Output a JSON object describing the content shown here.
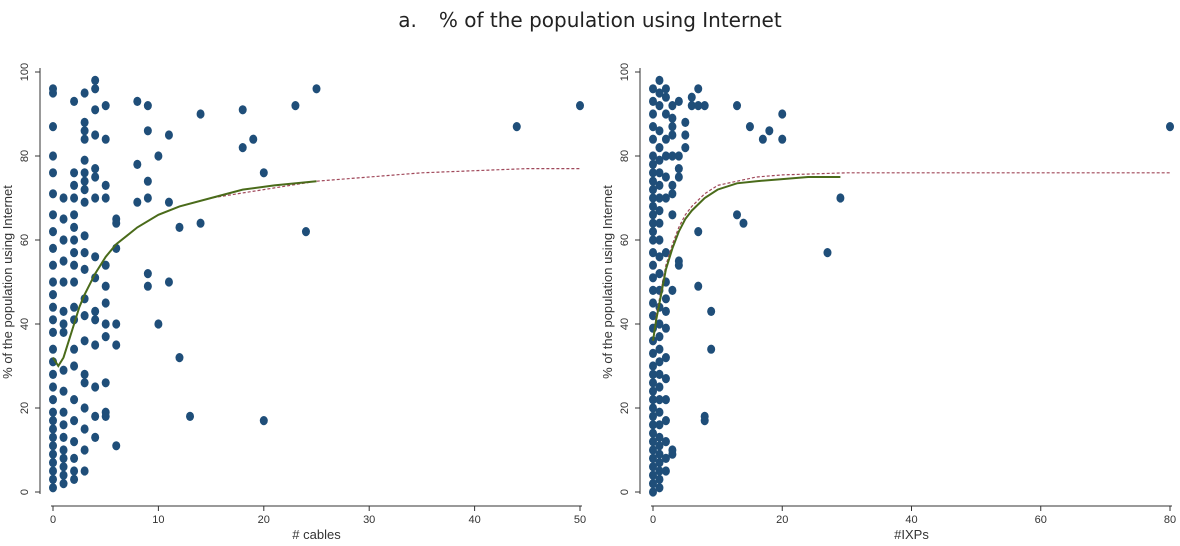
{
  "title": {
    "number": "a.",
    "text": "% of the population using Internet"
  },
  "chart_data": [
    {
      "type": "scatter",
      "xlabel": "# cables",
      "ylabel": "% of the population using Internet",
      "xlim": [
        0,
        50
      ],
      "ylim": [
        0,
        100
      ],
      "xticks": [
        0,
        10,
        20,
        30,
        40,
        50
      ],
      "yticks": [
        0,
        20,
        40,
        60,
        80,
        100
      ],
      "colors": {
        "points": "#1f4e79",
        "fit_solid": "#4a6b1a",
        "fit_dashed": "#a0485a"
      },
      "points": [
        [
          0,
          1
        ],
        [
          0,
          3
        ],
        [
          0,
          5
        ],
        [
          0,
          7
        ],
        [
          0,
          9
        ],
        [
          0,
          11
        ],
        [
          0,
          13
        ],
        [
          0,
          15
        ],
        [
          0,
          17
        ],
        [
          0,
          19
        ],
        [
          0,
          22
        ],
        [
          0,
          25
        ],
        [
          0,
          28
        ],
        [
          0,
          31
        ],
        [
          0,
          34
        ],
        [
          0,
          38
        ],
        [
          0,
          41
        ],
        [
          0,
          44
        ],
        [
          0,
          47
        ],
        [
          0,
          50
        ],
        [
          0,
          54
        ],
        [
          0,
          58
        ],
        [
          0,
          62
        ],
        [
          0,
          66
        ],
        [
          0,
          71
        ],
        [
          0,
          76
        ],
        [
          0,
          80
        ],
        [
          0,
          87
        ],
        [
          0,
          95
        ],
        [
          0,
          96
        ],
        [
          1,
          2
        ],
        [
          1,
          4
        ],
        [
          1,
          6
        ],
        [
          1,
          8
        ],
        [
          1,
          10
        ],
        [
          1,
          13
        ],
        [
          1,
          16
        ],
        [
          1,
          19
        ],
        [
          1,
          24
        ],
        [
          1,
          29
        ],
        [
          1,
          38
        ],
        [
          1,
          40
        ],
        [
          1,
          43
        ],
        [
          1,
          50
        ],
        [
          1,
          55
        ],
        [
          1,
          60
        ],
        [
          1,
          65
        ],
        [
          1,
          70
        ],
        [
          2,
          3
        ],
        [
          2,
          5
        ],
        [
          2,
          8
        ],
        [
          2,
          12
        ],
        [
          2,
          17
        ],
        [
          2,
          22
        ],
        [
          2,
          30
        ],
        [
          2,
          34
        ],
        [
          2,
          41
        ],
        [
          2,
          44
        ],
        [
          2,
          50
        ],
        [
          2,
          54
        ],
        [
          2,
          57
        ],
        [
          2,
          60
        ],
        [
          2,
          63
        ],
        [
          2,
          66
        ],
        [
          2,
          70
        ],
        [
          2,
          73
        ],
        [
          2,
          76
        ],
        [
          2,
          93
        ],
        [
          3,
          5
        ],
        [
          3,
          10
        ],
        [
          3,
          15
        ],
        [
          3,
          20
        ],
        [
          3,
          26
        ],
        [
          3,
          28
        ],
        [
          3,
          36
        ],
        [
          3,
          42
        ],
        [
          3,
          46
        ],
        [
          3,
          53
        ],
        [
          3,
          57
        ],
        [
          3,
          61
        ],
        [
          3,
          69
        ],
        [
          3,
          72
        ],
        [
          3,
          74
        ],
        [
          3,
          76
        ],
        [
          3,
          79
        ],
        [
          3,
          84
        ],
        [
          3,
          86
        ],
        [
          3,
          88
        ],
        [
          3,
          95
        ],
        [
          4,
          13
        ],
        [
          4,
          18
        ],
        [
          4,
          25
        ],
        [
          4,
          35
        ],
        [
          4,
          41
        ],
        [
          4,
          43
        ],
        [
          4,
          51
        ],
        [
          4,
          56
        ],
        [
          4,
          70
        ],
        [
          4,
          75
        ],
        [
          4,
          77
        ],
        [
          4,
          85
        ],
        [
          4,
          91
        ],
        [
          4,
          96
        ],
        [
          4,
          98
        ],
        [
          5,
          18
        ],
        [
          5,
          19
        ],
        [
          5,
          26
        ],
        [
          5,
          37
        ],
        [
          5,
          40
        ],
        [
          5,
          45
        ],
        [
          5,
          49
        ],
        [
          5,
          54
        ],
        [
          5,
          70
        ],
        [
          5,
          73
        ],
        [
          5,
          84
        ],
        [
          5,
          92
        ],
        [
          6,
          11
        ],
        [
          6,
          35
        ],
        [
          6,
          40
        ],
        [
          6,
          58
        ],
        [
          6,
          64
        ],
        [
          6,
          65
        ],
        [
          8,
          69
        ],
        [
          8,
          78
        ],
        [
          8,
          93
        ],
        [
          9,
          49
        ],
        [
          9,
          52
        ],
        [
          9,
          70
        ],
        [
          9,
          74
        ],
        [
          9,
          86
        ],
        [
          9,
          92
        ],
        [
          10,
          40
        ],
        [
          10,
          80
        ],
        [
          11,
          50
        ],
        [
          11,
          69
        ],
        [
          11,
          85
        ],
        [
          12,
          32
        ],
        [
          12,
          63
        ],
        [
          13,
          18
        ],
        [
          14,
          64
        ],
        [
          14,
          90
        ],
        [
          18,
          82
        ],
        [
          18,
          91
        ],
        [
          19,
          84
        ],
        [
          20,
          17
        ],
        [
          20,
          76
        ],
        [
          23,
          92
        ],
        [
          24,
          62
        ],
        [
          25,
          96
        ],
        [
          44,
          87
        ],
        [
          50,
          92
        ]
      ],
      "fit_solid": {
        "x": [
          0,
          0.5,
          1,
          1.5,
          2,
          2.5,
          3,
          4,
          5,
          6,
          7,
          8,
          10,
          12,
          15,
          18,
          21,
          25
        ],
        "y": [
          32,
          30,
          32,
          36,
          40,
          44,
          47,
          52,
          56,
          59,
          61,
          63,
          66,
          68,
          70,
          72,
          73,
          74
        ]
      },
      "fit_dashed": {
        "x": [
          0,
          0.5,
          1,
          1.5,
          2,
          2.5,
          3,
          4,
          5,
          6,
          7,
          8,
          10,
          12,
          15,
          20,
          25,
          30,
          35,
          40,
          45,
          50
        ],
        "y": [
          32,
          30,
          32,
          36,
          40,
          44,
          47,
          52,
          56,
          59,
          61,
          63,
          66,
          68,
          70,
          72,
          74,
          75,
          76,
          76.5,
          77,
          77
        ]
      }
    },
    {
      "type": "scatter",
      "xlabel": "#IXPs",
      "ylabel": "% of the population using Internet",
      "xlim": [
        0,
        80
      ],
      "ylim": [
        0,
        100
      ],
      "xticks": [
        0,
        20,
        40,
        60,
        80
      ],
      "yticks": [
        0,
        20,
        40,
        60,
        80,
        100
      ],
      "colors": {
        "points": "#1f4e79",
        "fit_solid": "#4a6b1a",
        "fit_dashed": "#a0485a"
      },
      "points": [
        [
          0,
          0
        ],
        [
          0,
          2
        ],
        [
          0,
          4
        ],
        [
          0,
          6
        ],
        [
          0,
          8
        ],
        [
          0,
          10
        ],
        [
          0,
          12
        ],
        [
          0,
          14
        ],
        [
          0,
          16
        ],
        [
          0,
          18
        ],
        [
          0,
          20
        ],
        [
          0,
          22
        ],
        [
          0,
          24
        ],
        [
          0,
          26
        ],
        [
          0,
          28
        ],
        [
          0,
          30
        ],
        [
          0,
          33
        ],
        [
          0,
          36
        ],
        [
          0,
          39
        ],
        [
          0,
          42
        ],
        [
          0,
          45
        ],
        [
          0,
          48
        ],
        [
          0,
          51
        ],
        [
          0,
          54
        ],
        [
          0,
          57
        ],
        [
          0,
          60
        ],
        [
          0,
          62
        ],
        [
          0,
          64
        ],
        [
          0,
          66
        ],
        [
          0,
          68
        ],
        [
          0,
          70
        ],
        [
          0,
          72
        ],
        [
          0,
          74
        ],
        [
          0,
          76
        ],
        [
          0,
          78
        ],
        [
          0,
          80
        ],
        [
          0,
          84
        ],
        [
          0,
          87
        ],
        [
          0,
          90
        ],
        [
          0,
          93
        ],
        [
          0,
          96
        ],
        [
          1,
          1
        ],
        [
          1,
          3
        ],
        [
          1,
          5
        ],
        [
          1,
          7
        ],
        [
          1,
          9
        ],
        [
          1,
          11
        ],
        [
          1,
          13
        ],
        [
          1,
          16
        ],
        [
          1,
          19
        ],
        [
          1,
          22
        ],
        [
          1,
          25
        ],
        [
          1,
          28
        ],
        [
          1,
          31
        ],
        [
          1,
          34
        ],
        [
          1,
          37
        ],
        [
          1,
          40
        ],
        [
          1,
          44
        ],
        [
          1,
          48
        ],
        [
          1,
          52
        ],
        [
          1,
          56
        ],
        [
          1,
          60
        ],
        [
          1,
          64
        ],
        [
          1,
          67
        ],
        [
          1,
          70
        ],
        [
          1,
          73
        ],
        [
          1,
          76
        ],
        [
          1,
          79
        ],
        [
          1,
          82
        ],
        [
          1,
          86
        ],
        [
          1,
          92
        ],
        [
          1,
          95
        ],
        [
          1,
          98
        ],
        [
          2,
          5
        ],
        [
          2,
          8
        ],
        [
          2,
          12
        ],
        [
          2,
          17
        ],
        [
          2,
          22
        ],
        [
          2,
          27
        ],
        [
          2,
          32
        ],
        [
          2,
          39
        ],
        [
          2,
          43
        ],
        [
          2,
          46
        ],
        [
          2,
          50
        ],
        [
          2,
          57
        ],
        [
          2,
          70
        ],
        [
          2,
          75
        ],
        [
          2,
          80
        ],
        [
          2,
          84
        ],
        [
          2,
          90
        ],
        [
          2,
          94
        ],
        [
          2,
          96
        ],
        [
          3,
          9
        ],
        [
          3,
          10
        ],
        [
          3,
          48
        ],
        [
          3,
          66
        ],
        [
          3,
          71
        ],
        [
          3,
          73
        ],
        [
          3,
          80
        ],
        [
          3,
          85
        ],
        [
          3,
          87
        ],
        [
          3,
          89
        ],
        [
          3,
          92
        ],
        [
          4,
          54
        ],
        [
          4,
          55
        ],
        [
          4,
          75
        ],
        [
          4,
          77
        ],
        [
          4,
          80
        ],
        [
          4,
          93
        ],
        [
          5,
          82
        ],
        [
          5,
          85
        ],
        [
          5,
          88
        ],
        [
          6,
          92
        ],
        [
          6,
          94
        ],
        [
          7,
          49
        ],
        [
          7,
          62
        ],
        [
          7,
          92
        ],
        [
          7,
          96
        ],
        [
          8,
          17
        ],
        [
          8,
          18
        ],
        [
          8,
          92
        ],
        [
          9,
          34
        ],
        [
          9,
          43
        ],
        [
          13,
          66
        ],
        [
          13,
          92
        ],
        [
          14,
          64
        ],
        [
          15,
          87
        ],
        [
          17,
          84
        ],
        [
          18,
          86
        ],
        [
          20,
          84
        ],
        [
          20,
          90
        ],
        [
          27,
          57
        ],
        [
          29,
          70
        ],
        [
          80,
          87
        ]
      ],
      "fit_solid": {
        "x": [
          0,
          0.5,
          1,
          1.5,
          2,
          3,
          4,
          5,
          6,
          8,
          10,
          13,
          16,
          20,
          24,
          29
        ],
        "y": [
          36,
          41,
          45,
          49,
          53,
          58,
          62,
          65,
          67,
          70,
          72,
          73.5,
          74,
          74.5,
          75,
          75
        ]
      },
      "fit_dashed": {
        "x": [
          0,
          0.5,
          1,
          1.5,
          2,
          3,
          4,
          5,
          6,
          8,
          10,
          13,
          16,
          20,
          30,
          40,
          50,
          60,
          70,
          80
        ],
        "y": [
          36,
          42,
          46,
          50,
          54,
          59,
          63,
          66,
          68,
          71,
          73,
          74,
          75,
          75.5,
          76,
          76,
          76,
          76,
          76,
          76
        ]
      }
    }
  ]
}
